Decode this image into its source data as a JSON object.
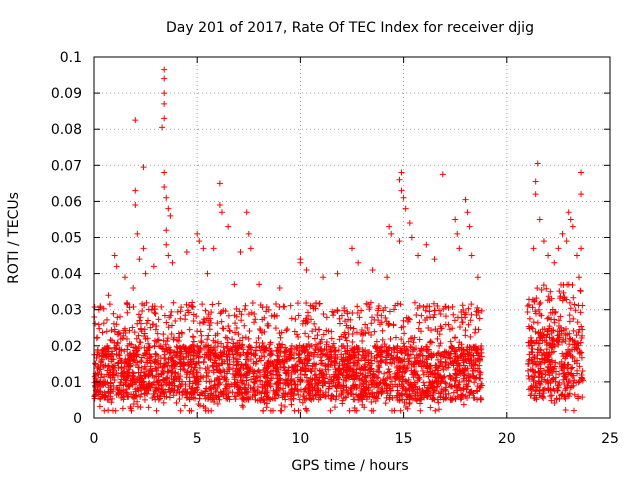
{
  "chart_data": {
    "type": "scatter",
    "title": "Day 201 of 2017, Rate Of TEC Index for receiver djig",
    "xlabel": "GPS time / hours",
    "ylabel": "ROTI / TECUs",
    "xlim": [
      0,
      25
    ],
    "ylim": [
      0,
      0.1
    ],
    "x_ticks": [
      0,
      5,
      10,
      15,
      20,
      25
    ],
    "x_tick_labels": [
      "0",
      "5",
      "10",
      "15",
      "20",
      "25"
    ],
    "y_ticks": [
      0,
      0.01,
      0.02,
      0.03,
      0.04,
      0.05,
      0.06,
      0.07,
      0.08,
      0.09,
      0.1
    ],
    "y_tick_labels": [
      "0",
      "0.01",
      "0.02",
      "0.03",
      "0.04",
      "0.05",
      "0.06",
      "0.07",
      "0.08",
      "0.09",
      "0.1"
    ],
    "grid": true,
    "legend": "none",
    "marker": "+",
    "series_color": "#ff0000",
    "data_gap_hours": [
      18.8,
      21.0
    ],
    "segments": [
      {
        "x_range": [
          0.0,
          18.8
        ],
        "typical_y_range": [
          0.005,
          0.02
        ]
      },
      {
        "x_range": [
          21.0,
          23.7
        ],
        "typical_y_range": [
          0.005,
          0.025
        ]
      }
    ],
    "outliers": [
      {
        "x": 0.3,
        "y": 0.031
      },
      {
        "x": 0.7,
        "y": 0.034
      },
      {
        "x": 1.0,
        "y": 0.045
      },
      {
        "x": 1.1,
        "y": 0.042
      },
      {
        "x": 1.5,
        "y": 0.039
      },
      {
        "x": 1.9,
        "y": 0.036
      },
      {
        "x": 2.0,
        "y": 0.0825
      },
      {
        "x": 2.0,
        "y": 0.063
      },
      {
        "x": 2.0,
        "y": 0.059
      },
      {
        "x": 2.1,
        "y": 0.051
      },
      {
        "x": 2.2,
        "y": 0.044
      },
      {
        "x": 2.4,
        "y": 0.0695
      },
      {
        "x": 2.4,
        "y": 0.047
      },
      {
        "x": 2.5,
        "y": 0.04
      },
      {
        "x": 2.9,
        "y": 0.042
      },
      {
        "x": 3.4,
        "y": 0.0965
      },
      {
        "x": 3.4,
        "y": 0.094
      },
      {
        "x": 3.4,
        "y": 0.09
      },
      {
        "x": 3.4,
        "y": 0.087
      },
      {
        "x": 3.4,
        "y": 0.083
      },
      {
        "x": 3.3,
        "y": 0.0805
      },
      {
        "x": 3.4,
        "y": 0.068
      },
      {
        "x": 3.4,
        "y": 0.064
      },
      {
        "x": 3.5,
        "y": 0.061
      },
      {
        "x": 3.6,
        "y": 0.058
      },
      {
        "x": 3.7,
        "y": 0.056
      },
      {
        "x": 3.5,
        "y": 0.052
      },
      {
        "x": 3.5,
        "y": 0.048
      },
      {
        "x": 3.6,
        "y": 0.045
      },
      {
        "x": 3.8,
        "y": 0.043
      },
      {
        "x": 4.5,
        "y": 0.046
      },
      {
        "x": 5.0,
        "y": 0.051
      },
      {
        "x": 5.1,
        "y": 0.049
      },
      {
        "x": 5.3,
        "y": 0.047
      },
      {
        "x": 5.5,
        "y": 0.04
      },
      {
        "x": 5.8,
        "y": 0.047
      },
      {
        "x": 6.1,
        "y": 0.065
      },
      {
        "x": 6.1,
        "y": 0.059
      },
      {
        "x": 6.2,
        "y": 0.057
      },
      {
        "x": 6.5,
        "y": 0.053
      },
      {
        "x": 6.8,
        "y": 0.037
      },
      {
        "x": 7.1,
        "y": 0.046
      },
      {
        "x": 7.4,
        "y": 0.057
      },
      {
        "x": 7.5,
        "y": 0.051
      },
      {
        "x": 7.6,
        "y": 0.047
      },
      {
        "x": 8.0,
        "y": 0.037
      },
      {
        "x": 9.0,
        "y": 0.036
      },
      {
        "x": 10.0,
        "y": 0.044
      },
      {
        "x": 10.0,
        "y": 0.043
      },
      {
        "x": 10.3,
        "y": 0.041
      },
      {
        "x": 11.1,
        "y": 0.039
      },
      {
        "x": 11.8,
        "y": 0.04
      },
      {
        "x": 12.5,
        "y": 0.047
      },
      {
        "x": 12.8,
        "y": 0.043
      },
      {
        "x": 13.5,
        "y": 0.041
      },
      {
        "x": 14.2,
        "y": 0.039
      },
      {
        "x": 14.3,
        "y": 0.053
      },
      {
        "x": 14.4,
        "y": 0.051
      },
      {
        "x": 14.8,
        "y": 0.049
      },
      {
        "x": 14.8,
        "y": 0.066
      },
      {
        "x": 14.9,
        "y": 0.068
      },
      {
        "x": 14.9,
        "y": 0.063
      },
      {
        "x": 15.0,
        "y": 0.061
      },
      {
        "x": 15.1,
        "y": 0.058
      },
      {
        "x": 15.3,
        "y": 0.054
      },
      {
        "x": 15.4,
        "y": 0.05
      },
      {
        "x": 15.7,
        "y": 0.045
      },
      {
        "x": 16.1,
        "y": 0.048
      },
      {
        "x": 16.5,
        "y": 0.044
      },
      {
        "x": 16.9,
        "y": 0.0675
      },
      {
        "x": 17.5,
        "y": 0.055
      },
      {
        "x": 17.6,
        "y": 0.051
      },
      {
        "x": 17.7,
        "y": 0.047
      },
      {
        "x": 18.0,
        "y": 0.0605
      },
      {
        "x": 18.1,
        "y": 0.057
      },
      {
        "x": 18.2,
        "y": 0.053
      },
      {
        "x": 18.3,
        "y": 0.045
      },
      {
        "x": 18.6,
        "y": 0.039
      },
      {
        "x": 21.3,
        "y": 0.047
      },
      {
        "x": 21.4,
        "y": 0.0655
      },
      {
        "x": 21.4,
        "y": 0.062
      },
      {
        "x": 21.5,
        "y": 0.0705
      },
      {
        "x": 21.6,
        "y": 0.055
      },
      {
        "x": 21.8,
        "y": 0.049
      },
      {
        "x": 22.0,
        "y": 0.045
      },
      {
        "x": 22.3,
        "y": 0.043
      },
      {
        "x": 22.5,
        "y": 0.047
      },
      {
        "x": 22.7,
        "y": 0.051
      },
      {
        "x": 22.9,
        "y": 0.049
      },
      {
        "x": 23.0,
        "y": 0.057
      },
      {
        "x": 23.1,
        "y": 0.055
      },
      {
        "x": 23.2,
        "y": 0.053
      },
      {
        "x": 23.4,
        "y": 0.045
      },
      {
        "x": 23.5,
        "y": 0.039
      },
      {
        "x": 23.6,
        "y": 0.068
      },
      {
        "x": 23.6,
        "y": 0.062
      },
      {
        "x": 23.6,
        "y": 0.047
      }
    ]
  }
}
